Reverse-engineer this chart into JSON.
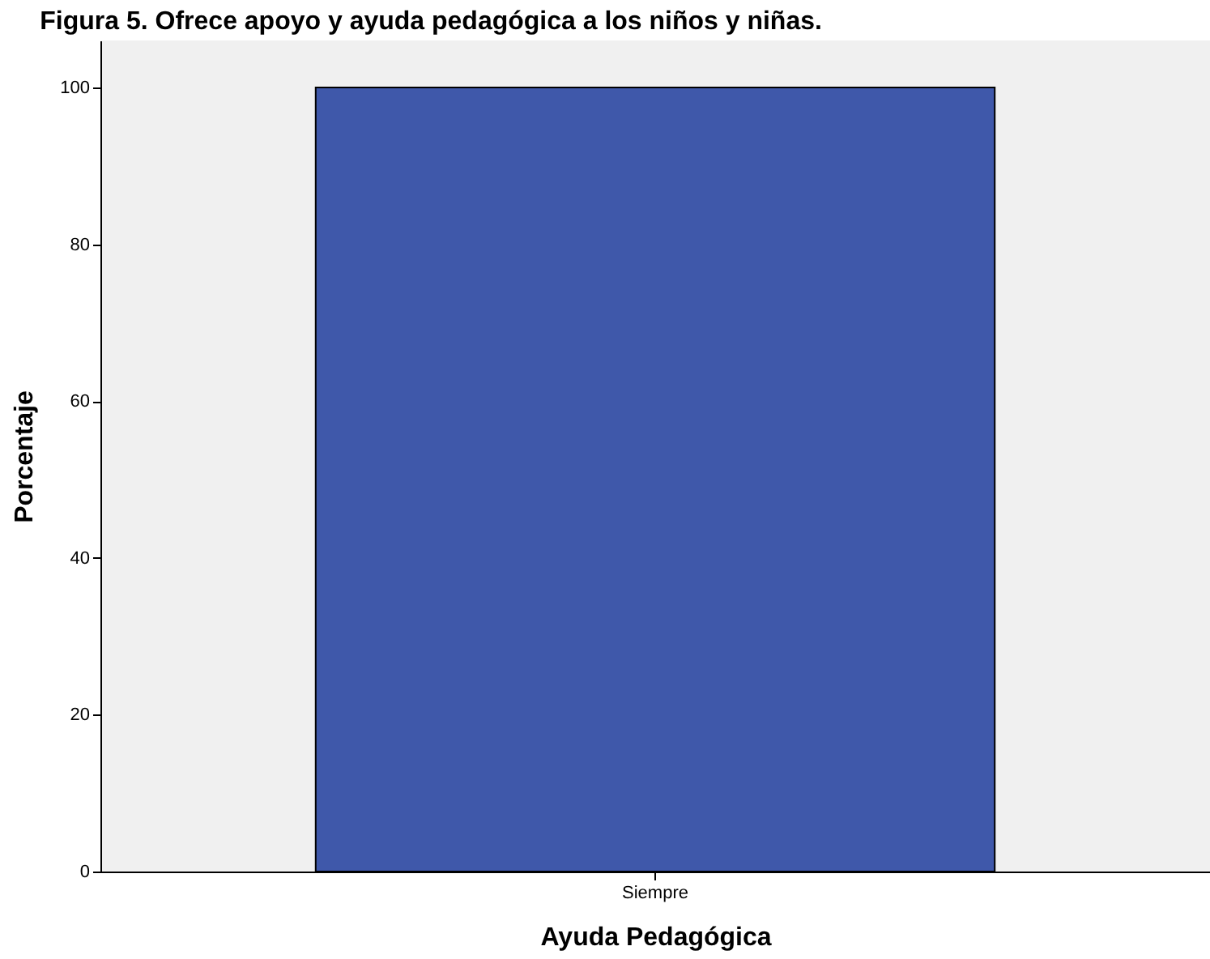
{
  "chart_data": {
    "type": "bar",
    "title": "Figura 5. Ofrece apoyo y ayuda pedagógica a los niños y niñas.",
    "xlabel": "Ayuda Pedagógica",
    "ylabel": "Porcentaje",
    "categories": [
      "Siempre"
    ],
    "values": [
      100
    ],
    "color": "#3f58aa",
    "ylim": [
      0,
      106
    ],
    "yticks": [
      0,
      20,
      40,
      60,
      80,
      100
    ],
    "grid": false
  }
}
